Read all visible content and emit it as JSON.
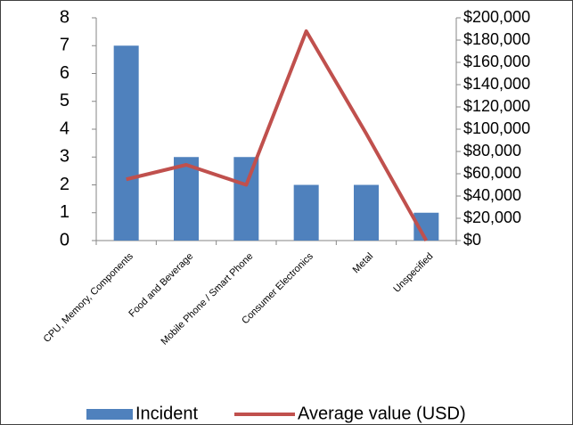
{
  "chart_data": {
    "type": "bar",
    "categories": [
      "CPU, Memory, Components",
      "Food and Beverage",
      "Mobile Phone / Smart Phone",
      "Consumer Electronics",
      "Metal",
      "Unspecified"
    ],
    "series": [
      {
        "name": "Incident",
        "color": "#4f81bd",
        "values": [
          7,
          3,
          3,
          2,
          2,
          1
        ]
      },
      {
        "name": "Average value (USD)",
        "color": "#c0504d",
        "type": "line",
        "axis": "y2",
        "values": [
          55000,
          68000,
          50000,
          188000,
          96000,
          0
        ]
      }
    ],
    "ylim": [
      0,
      8
    ],
    "yticks": [
      0,
      1,
      2,
      3,
      4,
      5,
      6,
      7,
      8
    ],
    "y2lim": [
      0,
      200000
    ],
    "y2ticks": [
      {
        "value": 0,
        "label": "$0"
      },
      {
        "value": 20000,
        "label": "$20,000"
      },
      {
        "value": 40000,
        "label": "$40,000"
      },
      {
        "value": 60000,
        "label": "$60,000"
      },
      {
        "value": 80000,
        "label": "$80,000"
      },
      {
        "value": 100000,
        "label": "$100,000"
      },
      {
        "value": 120000,
        "label": "$120,000"
      },
      {
        "value": 140000,
        "label": "$140,000"
      },
      {
        "value": 160000,
        "label": "$160,000"
      },
      {
        "value": 180000,
        "label": "$180,000"
      },
      {
        "value": 200000,
        "label": "$200,000"
      }
    ],
    "grid": false,
    "legend": "bottom"
  }
}
